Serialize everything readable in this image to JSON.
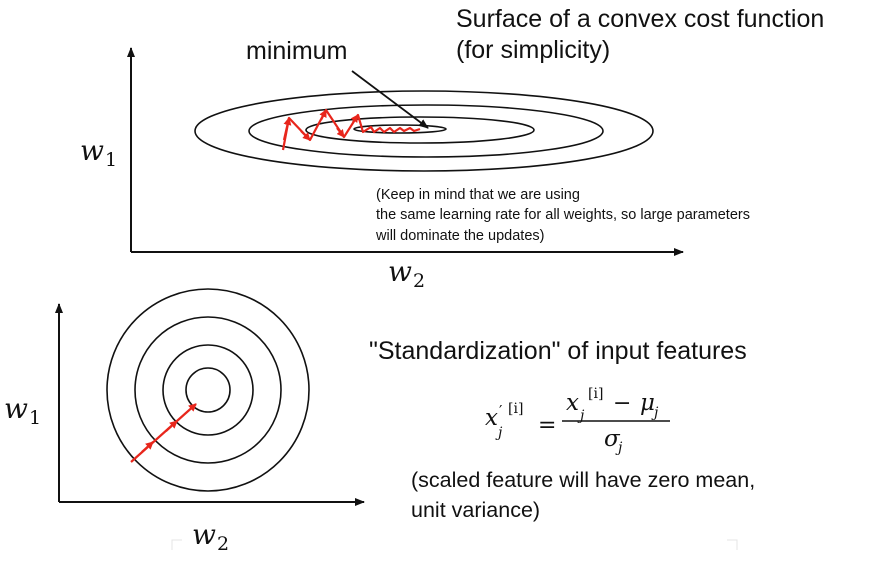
{
  "top_panel": {
    "title_line1": "Surface of a convex cost function",
    "title_line2": "(for simplicity)",
    "minimum_label": "minimum",
    "y_axis_label": "w",
    "y_axis_sub": "1",
    "x_axis_label": "w",
    "x_axis_sub": "2",
    "note_lines": [
      "(Keep in mind that we are using",
      "the same learning rate for all weights, so large parameters",
      "will dominate the updates)"
    ]
  },
  "bottom_panel": {
    "heading": "\"Standardization\" of input features",
    "y_axis_label": "w",
    "y_axis_sub": "1",
    "x_axis_label": "w",
    "x_axis_sub": "2",
    "formula": {
      "lhs_base": "x",
      "lhs_prime": "′",
      "lhs_sub": "j",
      "lhs_sup": "[i]",
      "equals": "=",
      "num_base": "x",
      "num_sub": "j",
      "num_sup": "[i]",
      "minus": "−",
      "mu": "μ",
      "mu_sub": "j",
      "den": "σ",
      "den_sub": "j"
    },
    "caption_lines": [
      "(scaled feature will have zero mean,",
      "unit variance)"
    ]
  },
  "colors": {
    "axis": "#111111",
    "contour": "#111111",
    "path": "#e8261c"
  }
}
